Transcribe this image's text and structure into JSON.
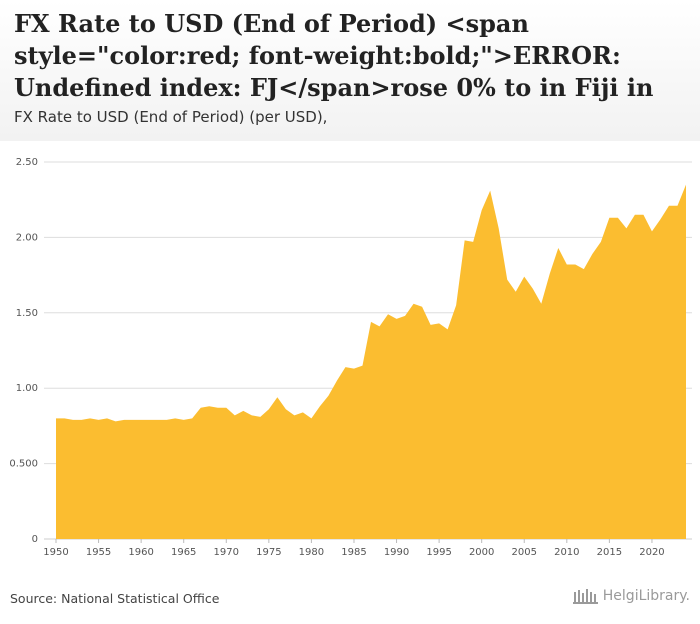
{
  "header": {
    "title": "FX Rate to USD (End of Period) <span style=\"color:red; font-weight:bold;\">ERROR: Undefined index: FJ</span>rose 0% to in Fiji in",
    "subtitle": "FX Rate to USD (End of Period) (per USD),"
  },
  "footer": {
    "source": "Source: National Statistical Office",
    "logo_text": "HelgiLibrary."
  },
  "colors": {
    "area": "#fbbd30",
    "grid": "#dddddd",
    "logo": "#9a9a9a"
  },
  "chart_data": {
    "type": "area",
    "title": "",
    "xlabel": "",
    "ylabel": "",
    "xlim": [
      1950,
      2024
    ],
    "ylim": [
      0,
      2.5
    ],
    "y_ticks": [
      0,
      0.5,
      1.0,
      1.5,
      2.0,
      2.5
    ],
    "y_tick_labels": [
      "0",
      "0.500",
      "1.00",
      "1.50",
      "2.00",
      "2.50"
    ],
    "x_ticks": [
      1950,
      1955,
      1960,
      1965,
      1970,
      1975,
      1980,
      1985,
      1990,
      1995,
      2000,
      2005,
      2010,
      2015,
      2020
    ],
    "grid": "horizontal",
    "series": [
      {
        "name": "FX Rate to USD (End of Period)",
        "x": [
          1950,
          1951,
          1952,
          1953,
          1954,
          1955,
          1956,
          1957,
          1958,
          1959,
          1960,
          1961,
          1962,
          1963,
          1964,
          1965,
          1966,
          1967,
          1968,
          1969,
          1970,
          1971,
          1972,
          1973,
          1974,
          1975,
          1976,
          1977,
          1978,
          1979,
          1980,
          1981,
          1982,
          1983,
          1984,
          1985,
          1986,
          1987,
          1988,
          1989,
          1990,
          1991,
          1992,
          1993,
          1994,
          1995,
          1996,
          1997,
          1998,
          1999,
          2000,
          2001,
          2002,
          2003,
          2004,
          2005,
          2006,
          2007,
          2008,
          2009,
          2010,
          2011,
          2012,
          2013,
          2014,
          2015,
          2016,
          2017,
          2018,
          2019,
          2020,
          2021,
          2022,
          2023,
          2024
        ],
        "values": [
          0.8,
          0.8,
          0.79,
          0.79,
          0.8,
          0.79,
          0.8,
          0.78,
          0.79,
          0.79,
          0.79,
          0.79,
          0.79,
          0.79,
          0.8,
          0.79,
          0.8,
          0.87,
          0.88,
          0.87,
          0.87,
          0.82,
          0.85,
          0.82,
          0.81,
          0.86,
          0.94,
          0.86,
          0.82,
          0.84,
          0.8,
          0.88,
          0.95,
          1.05,
          1.14,
          1.13,
          1.15,
          1.44,
          1.41,
          1.49,
          1.46,
          1.48,
          1.56,
          1.54,
          1.42,
          1.43,
          1.39,
          1.55,
          1.98,
          1.97,
          2.18,
          2.31,
          2.06,
          1.72,
          1.64,
          1.74,
          1.66,
          1.56,
          1.76,
          1.93,
          1.82,
          1.82,
          1.79,
          1.89,
          1.97,
          2.13,
          2.13,
          2.06,
          2.15,
          2.15,
          2.04,
          2.12,
          2.21,
          2.21,
          2.35
        ]
      }
    ]
  }
}
